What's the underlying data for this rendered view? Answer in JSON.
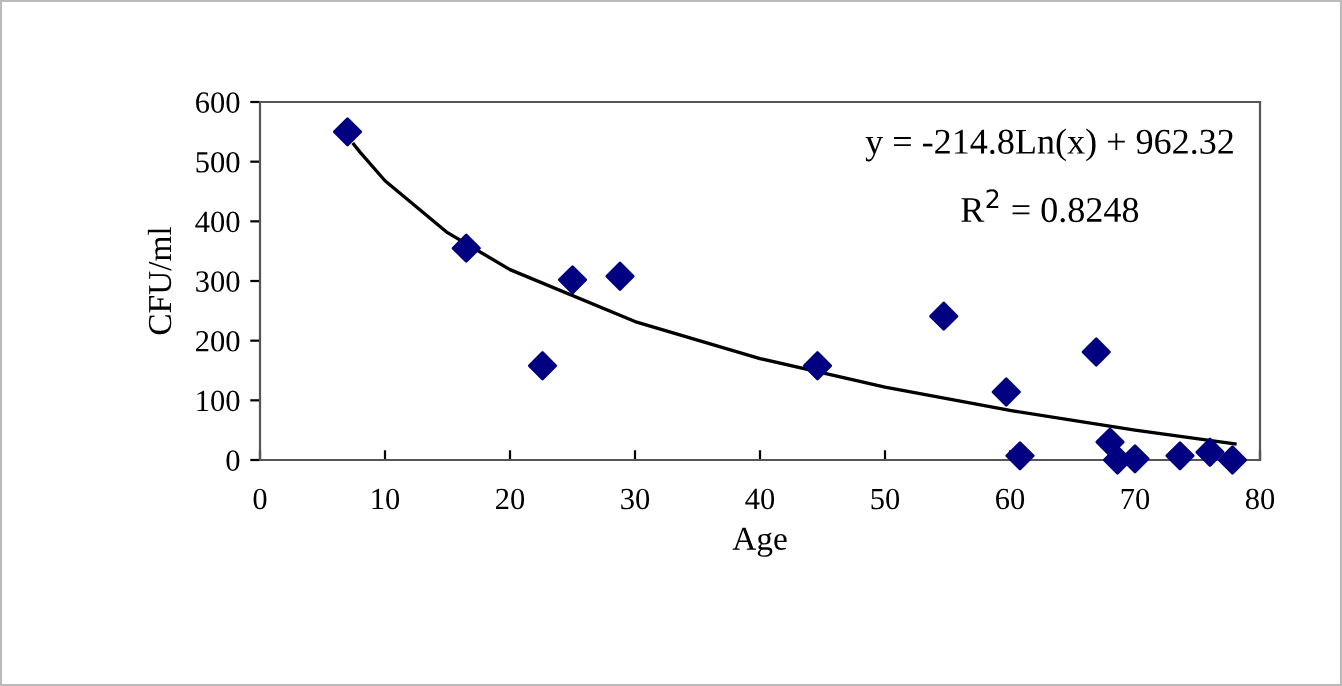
{
  "chart_data": {
    "type": "scatter",
    "xlabel": "Age",
    "ylabel": "CFU/ml",
    "xlim": [
      0,
      80
    ],
    "xticks": [
      0,
      10,
      20,
      30,
      40,
      50,
      60,
      70,
      80
    ],
    "ylim": [
      0,
      600
    ],
    "yticks": [
      0,
      100,
      200,
      300,
      400,
      500,
      600
    ],
    "grid": false,
    "legend": false,
    "series": [
      {
        "marker": "diamond",
        "color": "#000080",
        "x": [
          7,
          16.5,
          22.6,
          25,
          28.8,
          44.6,
          54.7,
          59.7,
          60.8,
          66.9,
          68,
          68.6,
          70,
          73.6,
          76,
          77.8
        ],
        "values": [
          550,
          355,
          158,
          302,
          308,
          158,
          241,
          114,
          7,
          181,
          30,
          0,
          2,
          7,
          13,
          0
        ]
      },
      {
        "type": "line",
        "marker": "none",
        "color": "#000000",
        "line_style": "solid",
        "x": [
          7.5,
          8,
          10,
          15,
          20,
          30,
          40,
          50,
          60,
          70,
          78
        ],
        "values": [
          529,
          516,
          468,
          381,
          319,
          232,
          170,
          122,
          83,
          50,
          27
        ]
      }
    ],
    "annotations": [
      "y = -214.8Ln(x) + 962.32",
      "R$^{2}$ = 0.8248"
    ]
  }
}
